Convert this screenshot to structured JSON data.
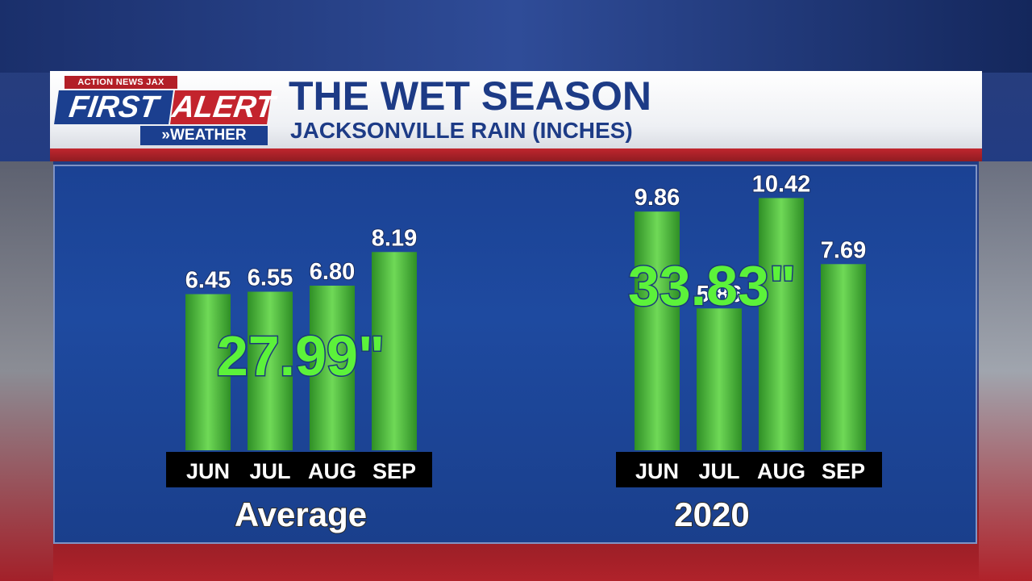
{
  "logo": {
    "top_text": "ACTION NEWS JAX",
    "first": "FIRST",
    "alert": "ALERT",
    "weather": "»WEATHER"
  },
  "header": {
    "title": "THE WET SEASON",
    "subtitle": "JACKSONVILLE RAIN (INCHES)"
  },
  "colors": {
    "bar": "#3ca530",
    "bar_highlight": "#6fd957",
    "total": "#5cf23a",
    "panel": "#1e4aa0",
    "label_band": "#000000"
  },
  "chart_data": [
    {
      "type": "bar",
      "group_label": "Average",
      "total_label": "27.99\"",
      "categories": [
        "JUN",
        "JUL",
        "AUG",
        "SEP"
      ],
      "values": [
        6.45,
        6.55,
        6.8,
        8.19
      ],
      "value_labels": [
        "6.45",
        "6.55",
        "6.80",
        "8.19"
      ],
      "ylim": [
        0,
        11
      ]
    },
    {
      "type": "bar",
      "group_label": "2020",
      "total_label": "33.83\"",
      "categories": [
        "JUN",
        "JUL",
        "AUG",
        "SEP"
      ],
      "values": [
        9.86,
        5.86,
        10.42,
        7.69
      ],
      "value_labels": [
        "9.86",
        "5.86",
        "10.42",
        "7.69"
      ],
      "ylim": [
        0,
        11
      ]
    }
  ]
}
